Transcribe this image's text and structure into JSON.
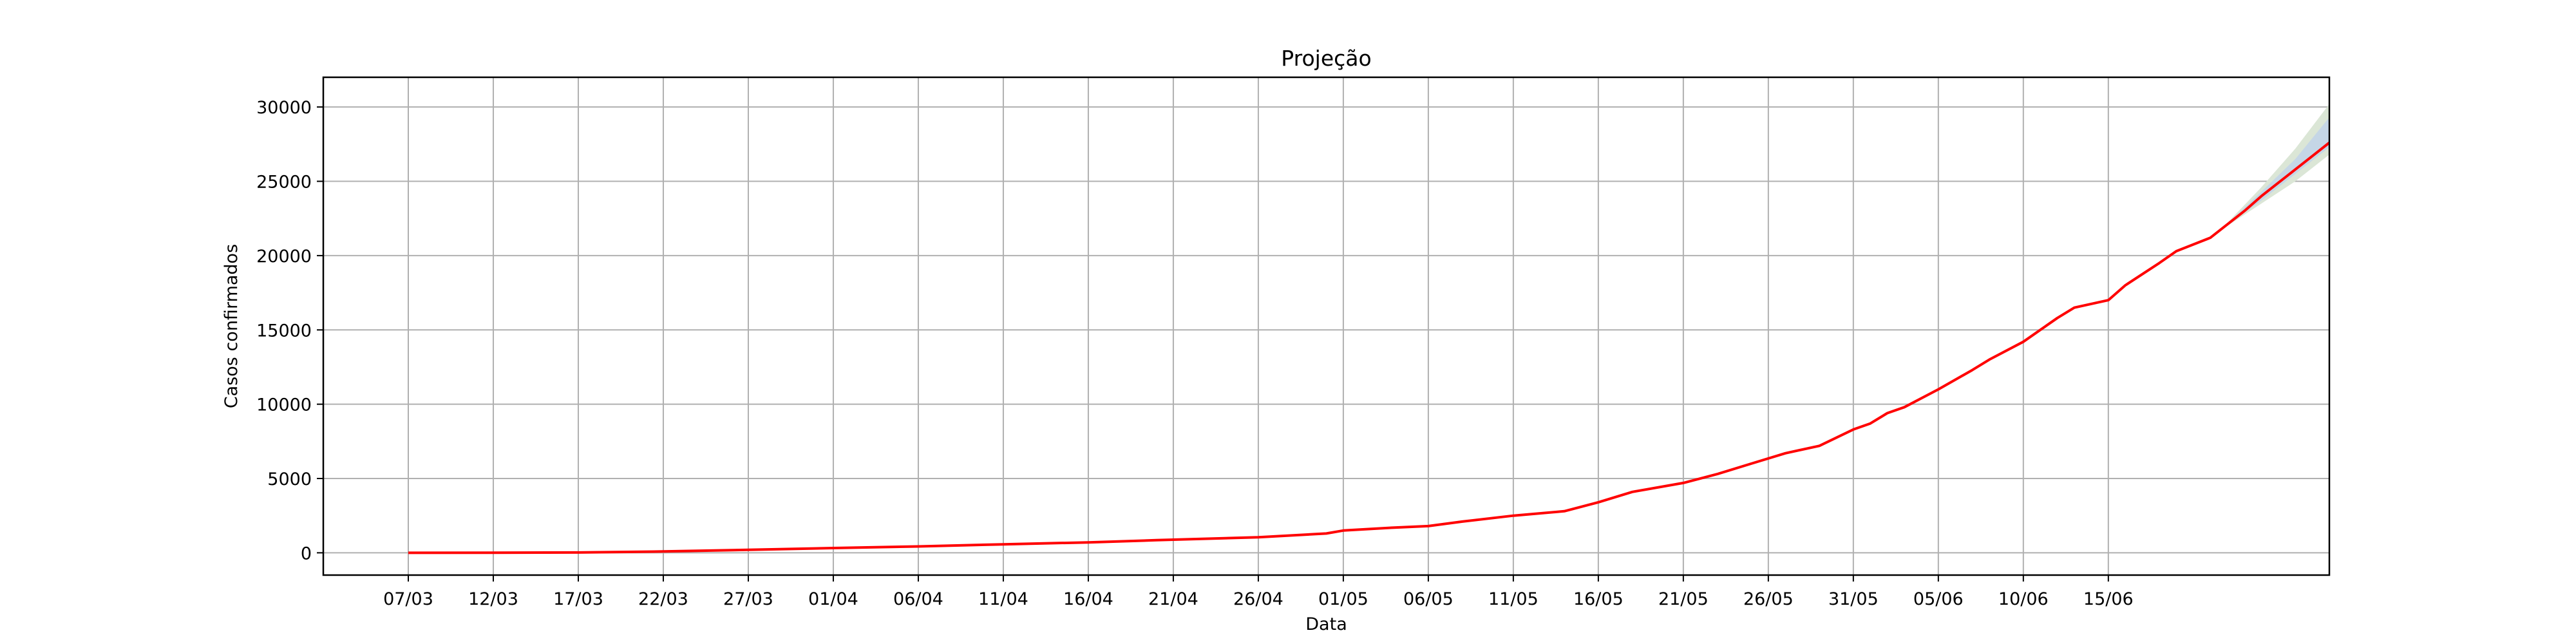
{
  "chart_data": {
    "type": "line",
    "title": "Projeção",
    "xlabel": "Data",
    "ylabel": "Casos confirmados",
    "grid": true,
    "legend": "none",
    "x_tick_labels": [
      "07/03",
      "12/03",
      "17/03",
      "22/03",
      "27/03",
      "01/04",
      "06/04",
      "11/04",
      "16/04",
      "21/04",
      "26/04",
      "01/05",
      "06/05",
      "11/05",
      "16/05",
      "21/05",
      "26/05",
      "31/05",
      "05/06",
      "10/06",
      "15/06"
    ],
    "x_tick_dates": [
      "2020-03-07",
      "2020-03-12",
      "2020-03-17",
      "2020-03-22",
      "2020-03-27",
      "2020-04-01",
      "2020-04-06",
      "2020-04-11",
      "2020-04-16",
      "2020-04-21",
      "2020-04-26",
      "2020-05-01",
      "2020-05-06",
      "2020-05-11",
      "2020-05-16",
      "2020-05-21",
      "2020-05-26",
      "2020-05-31",
      "2020-06-05",
      "2020-06-10",
      "2020-06-15"
    ],
    "y_ticks": [
      0,
      5000,
      10000,
      15000,
      20000,
      25000,
      30000
    ],
    "y_tick_labels": [
      "0",
      "5000",
      "10000",
      "15000",
      "20000",
      "25000",
      "30000"
    ],
    "xlim": [
      "2020-03-02",
      "2020-06-28"
    ],
    "ylim": [
      -1500,
      32000
    ],
    "colors": {
      "line": "#ff0000",
      "band_outer": "#dbe6d6",
      "band_inner": "#c5d6e6",
      "grid": "#b0b0b0"
    },
    "series": [
      {
        "values": [
          [
            "2020-03-07",
            0
          ],
          [
            "2020-03-12",
            2
          ],
          [
            "2020-03-17",
            20
          ],
          [
            "2020-03-22",
            90
          ],
          [
            "2020-03-27",
            200
          ],
          [
            "2020-04-01",
            320
          ],
          [
            "2020-04-06",
            430
          ],
          [
            "2020-04-11",
            570
          ],
          [
            "2020-04-16",
            700
          ],
          [
            "2020-04-20",
            850
          ],
          [
            "2020-04-26",
            1050
          ],
          [
            "2020-04-30",
            1300
          ],
          [
            "2020-05-01",
            1500
          ],
          [
            "2020-05-04",
            1700
          ],
          [
            "2020-05-06",
            1800
          ],
          [
            "2020-05-08",
            2100
          ],
          [
            "2020-05-11",
            2500
          ],
          [
            "2020-05-14",
            2800
          ],
          [
            "2020-05-16",
            3400
          ],
          [
            "2020-05-18",
            4100
          ],
          [
            "2020-05-21",
            4700
          ],
          [
            "2020-05-23",
            5300
          ],
          [
            "2020-05-25",
            6000
          ],
          [
            "2020-05-27",
            6700
          ],
          [
            "2020-05-29",
            7200
          ],
          [
            "2020-05-31",
            8300
          ],
          [
            "2020-06-01",
            8700
          ],
          [
            "2020-06-02",
            9400
          ],
          [
            "2020-06-03",
            9800
          ],
          [
            "2020-06-05",
            11000
          ],
          [
            "2020-06-07",
            12300
          ],
          [
            "2020-06-08",
            13000
          ],
          [
            "2020-06-10",
            14200
          ],
          [
            "2020-06-12",
            15800
          ],
          [
            "2020-06-13",
            16500
          ],
          [
            "2020-06-15",
            17000
          ],
          [
            "2020-06-16",
            18000
          ],
          [
            "2020-06-18",
            19500
          ],
          [
            "2020-06-19",
            20300
          ],
          [
            "2020-06-21",
            21200
          ],
          [
            "2020-06-22",
            22100
          ],
          [
            "2020-06-23",
            23000
          ],
          [
            "2020-06-24",
            24000
          ],
          [
            "2020-06-25",
            24900
          ],
          [
            "2020-06-26",
            25800
          ],
          [
            "2020-06-27",
            26700
          ],
          [
            "2020-06-28",
            27600
          ]
        ]
      }
    ],
    "projection_band": {
      "x": [
        "2020-06-22",
        "2020-06-24",
        "2020-06-26",
        "2020-06-28"
      ],
      "lower_outer": [
        22000,
        23500,
        25000,
        26800
      ],
      "lower_inner": [
        22050,
        23700,
        25500,
        27300
      ],
      "upper_inner": [
        22150,
        24300,
        26500,
        29300
      ],
      "upper_outer": [
        22200,
        24600,
        27200,
        30200
      ]
    }
  }
}
